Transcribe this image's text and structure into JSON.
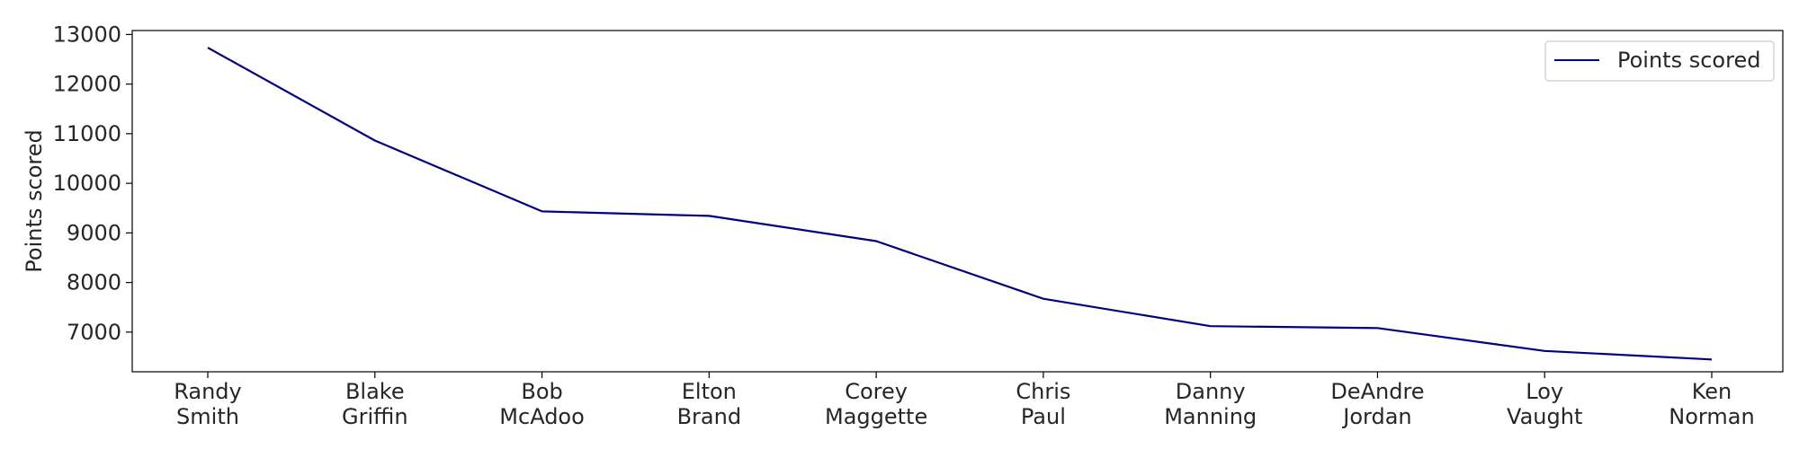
{
  "chart_data": {
    "type": "line",
    "title": "",
    "xlabel": "",
    "ylabel": "Points scored",
    "categories": [
      [
        "Randy",
        "Smith"
      ],
      [
        "Blake",
        "Griffin"
      ],
      [
        "Bob",
        "McAdoo"
      ],
      [
        "Elton",
        "Brand"
      ],
      [
        "Corey",
        "Maggette"
      ],
      [
        "Chris",
        "Paul"
      ],
      [
        "Danny",
        "Manning"
      ],
      [
        "DeAndre",
        "Jordan"
      ],
      [
        "Loy",
        "Vaught"
      ],
      [
        "Ken",
        "Norman"
      ]
    ],
    "series": [
      {
        "name": "Points scored",
        "color": "#000080",
        "values": [
          12735,
          10863,
          9434,
          9343,
          8835,
          7672,
          7120,
          7082,
          6620,
          6448
        ]
      }
    ],
    "ylim": [
      6200,
      13080
    ],
    "yticks": [
      7000,
      8000,
      9000,
      10000,
      11000,
      12000,
      13000
    ],
    "grid": false,
    "legend_position": "top-right"
  }
}
